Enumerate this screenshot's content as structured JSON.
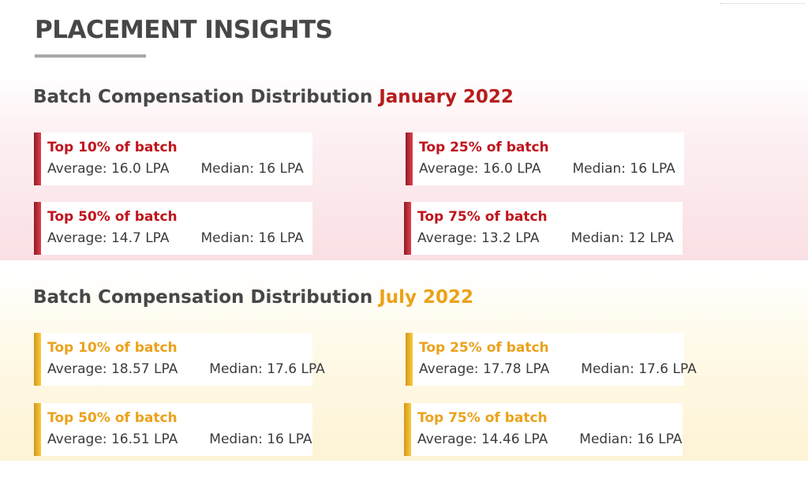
{
  "page": {
    "title": "PLACEMENT INSIGHTS"
  },
  "sections": [
    {
      "heading_prefix": "Batch Compensation Distribution",
      "heading_period": "January 2022",
      "accent_color": "#b71c1c",
      "cards": [
        {
          "title": "Top 10% of batch",
          "average": "Average: 16.0 LPA",
          "median": "Median: 16 LPA"
        },
        {
          "title": "Top 25% of batch",
          "average": "Average: 16.0 LPA",
          "median": "Median: 16 LPA"
        },
        {
          "title": "Top 50% of batch",
          "average": "Average: 14.7 LPA",
          "median": "Median: 16 LPA"
        },
        {
          "title": "Top 75% of batch",
          "average": "Average: 13.2 LPA",
          "median": "Median: 12 LPA"
        }
      ]
    },
    {
      "heading_prefix": "Batch Compensation Distribution",
      "heading_period": "July 2022",
      "accent_color": "#eba21a",
      "cards": [
        {
          "title": "Top 10% of batch",
          "average": "Average: 18.57 LPA",
          "median": "Median: 17.6 LPA"
        },
        {
          "title": "Top 25% of batch",
          "average": "Average: 17.78 LPA",
          "median": "Median: 17.6 LPA"
        },
        {
          "title": "Top 50% of batch",
          "average": "Average: 16.51 LPA",
          "median": "Median: 16 LPA"
        },
        {
          "title": "Top 75% of batch",
          "average": "Average: 14.46 LPA",
          "median": "Median: 16 LPA"
        }
      ]
    }
  ]
}
